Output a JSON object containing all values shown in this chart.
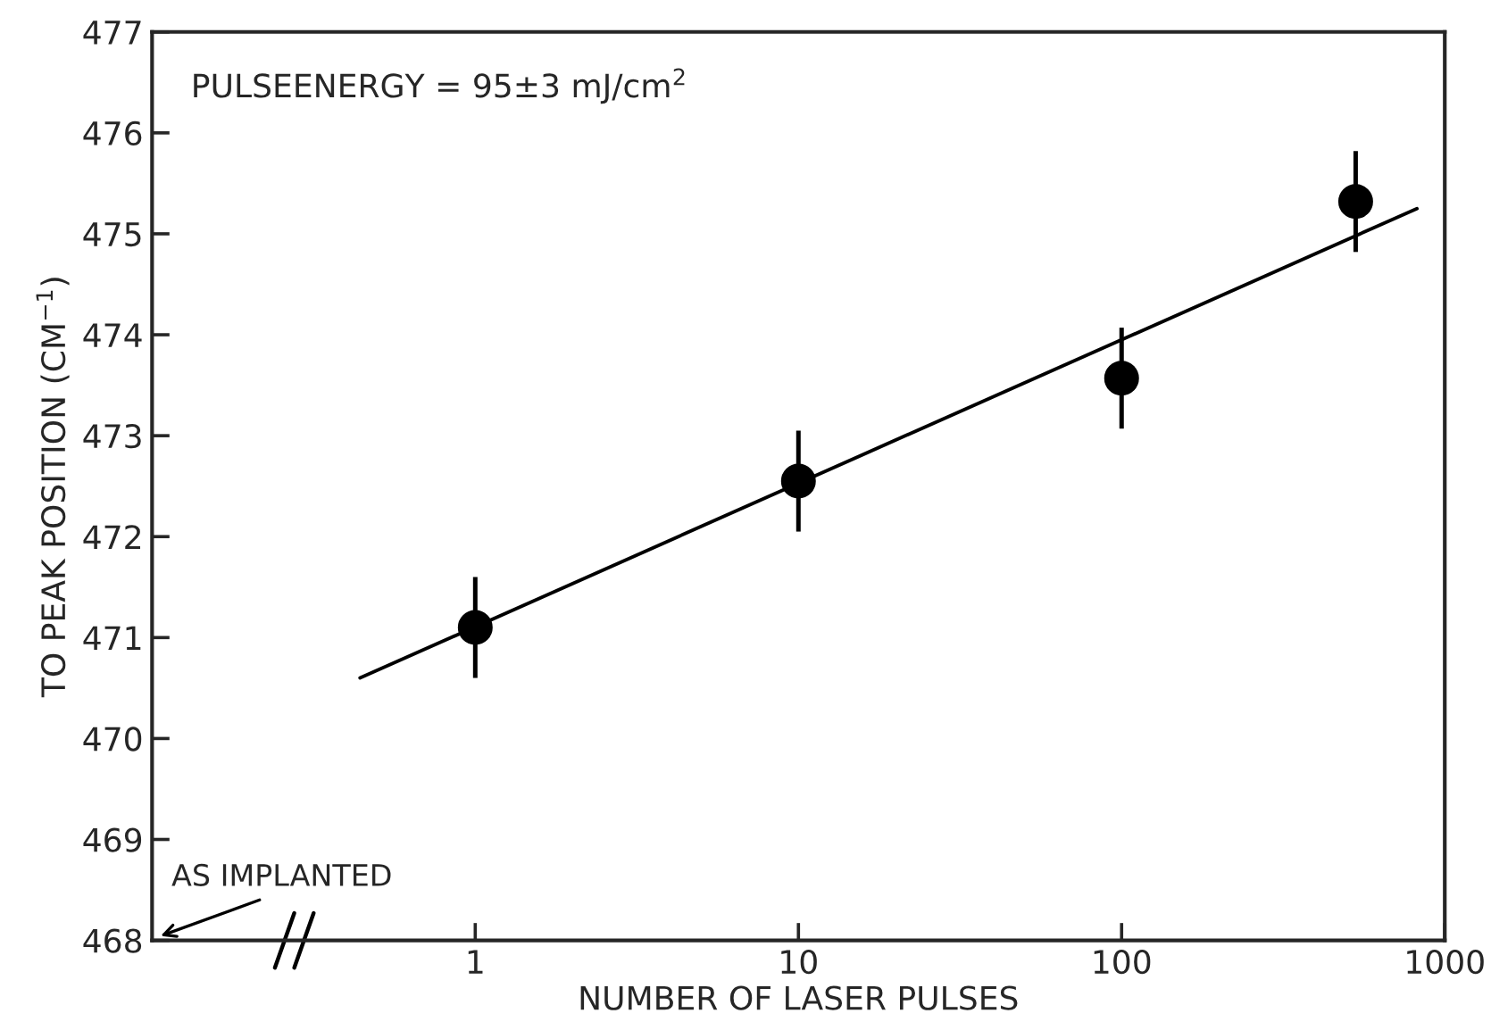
{
  "chart_data": {
    "type": "scatter",
    "xlabel": "NUMBER OF LASER PULSES",
    "ylabel": "TO PEAK POSITION (CM$^{−1}$)",
    "log": "x",
    "xlim": [
      0.1,
      1000
    ],
    "xticks": [
      1,
      10,
      100,
      1000
    ],
    "ylim": [
      468,
      477
    ],
    "yticks": [
      468,
      469,
      470,
      471,
      472,
      473,
      474,
      475,
      476,
      477
    ],
    "grid": false,
    "series": [
      {
        "marker": "circle",
        "color": "#000000",
        "x": [
          1,
          10,
          100,
          530
        ],
        "values": [
          471.1,
          472.55,
          473.57,
          475.32
        ],
        "errors": [
          0.5,
          0.5,
          0.5,
          0.5
        ]
      },
      {
        "type": "line",
        "color": "#000000",
        "x": [
          0.44,
          820
        ],
        "values": [
          470.6,
          475.25
        ],
        "line_style": "solid"
      }
    ],
    "annotations": [
      "PULSEENERGY = 95±3 mJ/cm$^{2}$",
      "AS IMPLANTED"
    ]
  }
}
